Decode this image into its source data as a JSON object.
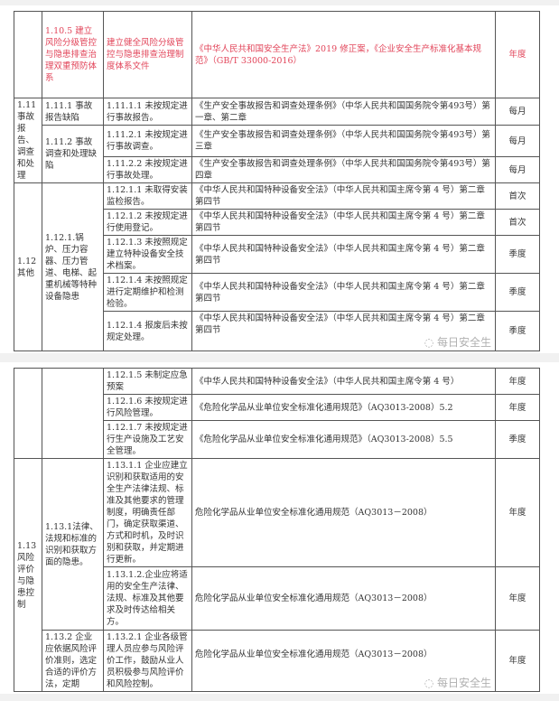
{
  "block1": {
    "row_1_10_5": {
      "item": "1.10.5 建立风险分级管控与隐患排查治理双重预防体系",
      "hazard": "建立健全风险分级管控与隐患排查治理制度体系文件",
      "basis": "《中华人民共和国安全生产法》2019 修正案，《企业安全生产标准化基本规范》（GB/T 33000-2016）",
      "freq": "年度"
    },
    "cat_1_11": "1.11 事故报告、调查和处理",
    "sub_1_11_1": "1.11.1 事故报告缺陷",
    "sub_1_11_2": "1.11.2 事故调查和处理缺陷",
    "rows_1_11": [
      {
        "hazard": "1.11.1.1 未按规定进行事故报告。",
        "basis": "《生产安全事故报告和调查处理条例》（中华人民共和国国务院令第493号）第一章、第二章",
        "freq": "每月"
      },
      {
        "hazard": "1.11.2.1 未按规定进行事故调查。",
        "basis": "《生产安全事故报告和调查处理条例》（中华人民共和国国务院令第493号）第三章",
        "freq": "每月"
      },
      {
        "hazard": "1.11.2.2 未按规定进行事故处理。",
        "basis": "《生产安全事故报告和调查处理条例》（中华人民共和国国务院令第493号）第四章",
        "freq": "每月"
      }
    ],
    "cat_1_12": "1.12 其他",
    "sub_1_12_1": "1.12.1.锅炉、压力容器、压力管道、电梯、起重机械等特种设备隐患",
    "rows_1_12": [
      {
        "hazard": "1.12.1.1 未取得安装监检报告。",
        "basis": "《中华人民共和国特种设备安全法》（中华人民共和国主席令第 4 号）第二章第四节",
        "freq": "首次"
      },
      {
        "hazard": "1.12.1.2 未按规定进行使用登记。",
        "basis": "《中华人民共和国特种设备安全法》（中华人民共和国主席令第 4 号）第二章第四节",
        "freq": "首次"
      },
      {
        "hazard": "1.12.1.3 未按照规定建立特种设备安全技术档案。",
        "basis": "《中华人民共和国特种设备安全法》（中华人民共和国主席令第 4 号）第二章第四节",
        "freq": "季度"
      },
      {
        "hazard": "1.12.1.4 未按照规定进行定期维护和检测检验。",
        "basis": "《中华人民共和国特种设备安全法》（中华人民共和国主席令第 4 号）第二章第四节",
        "freq": "季度"
      },
      {
        "hazard": "1.12.1.4 报废后未按规定处理。",
        "basis": "《中华人民共和国特种设备安全法》（中华人民共和国主席令第 4 号）第二章第四节",
        "freq": "季度"
      }
    ]
  },
  "block2": {
    "rows_1_12_cont": [
      {
        "hazard": "1.12.1.5 未制定应急预案",
        "basis": "《中华人民共和国特种设备安全法》（中华人民共和国主席令第 4 号）",
        "freq": "年度"
      },
      {
        "hazard": "1.12.1.6 未按规定进行风险管理。",
        "basis": "《危险化学品从业单位安全标准化通用规范》（AQ3013-2008）5.2",
        "freq": "年度"
      },
      {
        "hazard": "1.12.1.7 未按规定进行生产设施及工艺安全管理。",
        "basis": "《危险化学品从业单位安全标准化通用规范》（AQ3013-2008）5.5",
        "freq": "季度"
      }
    ],
    "cat_1_13": "1.13 风险评价与隐患控制",
    "sub_1_13_1": "1.13.1法律、法规和标准的识别和获取方面的隐患。",
    "sub_1_13_2": "1.13.2 企业应依据风险评价准则，选定合适的评价方法，定期",
    "rows_1_13": [
      {
        "hazard": "1.13.1.1 企业应建立识别和获取适用的安全生产法律法规、标准及其他要求的管理制度，明确责任部门，确定获取渠道、方式和时机，及时识别和获取，并定期进行更新。",
        "basis": "危险化学品从业单位安全标准化通用规范（AQ3013－2008）",
        "freq": "年度"
      },
      {
        "hazard": "1.13.1.2.企业应将适用的安全生产法律、法规、标准及其他要求及时传达给相关方。",
        "basis": "危险化学品从业单位安全标准化通用规范（AQ3013－2008）",
        "freq": "年度"
      },
      {
        "hazard": "1.13.2.1 企业各级管理人员应参与风险评价工作，鼓励从业人员积极参与风险评价和风险控制。",
        "basis": "危险化学品从业单位安全标准化通用规范（AQ3013－2008）",
        "freq": "年度"
      }
    ]
  },
  "watermark": "每日安全生"
}
